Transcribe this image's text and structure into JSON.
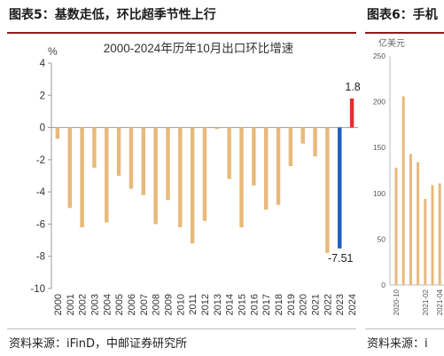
{
  "header": {
    "left_title": "图表5：基数走低，环比超季节性上行",
    "right_title": "图表6：手机"
  },
  "footer": {
    "left_source": "资料来源：iFinD，中邮证券研究所",
    "right_source": "资料来源：i"
  },
  "chart_data": [
    {
      "type": "bar",
      "title": "2000-2024年历年10月出口环比增速",
      "ylabel": "%",
      "xlabel": "",
      "ylim": [
        -10,
        4
      ],
      "yticks": [
        4,
        2,
        0,
        -2,
        -4,
        -6,
        -8,
        -10
      ],
      "categories": [
        "2000",
        "2001",
        "2002",
        "2003",
        "2004",
        "2005",
        "2006",
        "2007",
        "2008",
        "2009",
        "2010",
        "2011",
        "2012",
        "2013",
        "2014",
        "2015",
        "2016",
        "2017",
        "2018",
        "2019",
        "2020",
        "2021",
        "2022",
        "2023",
        "2024"
      ],
      "values": [
        -0.7,
        -5.0,
        -6.2,
        -2.5,
        -5.9,
        -3.0,
        -3.8,
        -4.2,
        -6.0,
        -4.5,
        -6.2,
        -7.2,
        -5.8,
        -0.1,
        -3.2,
        -6.2,
        -3.6,
        -5.1,
        -4.8,
        -2.4,
        -1.0,
        -1.8,
        -7.8,
        -7.51,
        1.8
      ],
      "bar_colors": {
        "default": "#e8b97a",
        "2023": "#1f5fbf",
        "2024": "#e0302b"
      },
      "data_labels": [
        {
          "category": "2023",
          "text": "-7.51"
        },
        {
          "category": "2024",
          "text": "1.8"
        }
      ],
      "grid": false
    },
    {
      "type": "bar",
      "title": "",
      "ylabel": "亿美元",
      "ylim": [
        0,
        250
      ],
      "yticks": [
        250,
        200,
        150,
        100,
        50,
        0
      ],
      "categories": [
        "2020-10",
        "",
        "",
        "",
        "2021-02",
        "",
        "2021-04",
        ""
      ],
      "values": [
        128,
        206,
        143,
        134,
        94,
        109,
        111,
        97
      ],
      "bar_color": "#e8b97a",
      "grid": false
    }
  ]
}
